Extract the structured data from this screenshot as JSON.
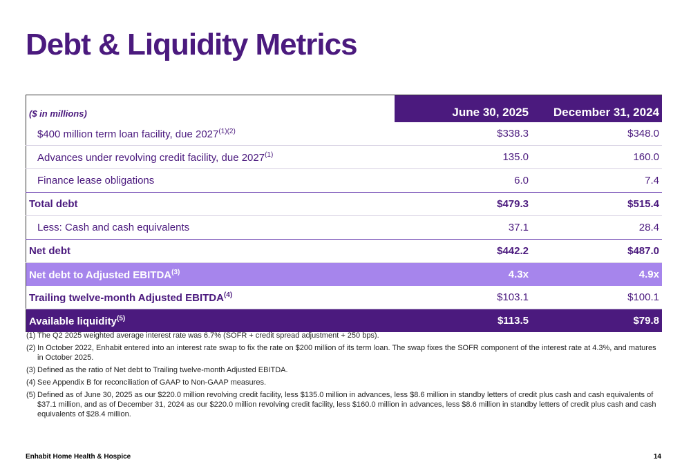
{
  "header": {
    "title": "Debt & Liquidity Metrics"
  },
  "table": {
    "units": "($ in millions)",
    "columns": [
      "June 30, 2025",
      "December 31, 2024"
    ],
    "rows": [
      {
        "label": "$400 million term loan facility, due 2027",
        "note": "(1)(2)",
        "values": [
          "$338.3",
          "$348.0"
        ],
        "style": "indent"
      },
      {
        "label": "Advances under revolving credit facility, due 2027",
        "note": "(1)",
        "values": [
          "135.0",
          "160.0"
        ],
        "style": "indent"
      },
      {
        "label": "Finance lease obligations",
        "values": [
          "6.0",
          "7.4"
        ],
        "style": "indent-end"
      },
      {
        "label": "Total debt",
        "values": [
          "$479.3",
          "$515.4"
        ],
        "style": "total"
      },
      {
        "label": "Less: Cash and cash equivalents",
        "values": [
          "37.1",
          "28.4"
        ],
        "style": "indent-end"
      },
      {
        "label": "Net debt",
        "values": [
          "$442.2",
          "$487.0"
        ],
        "style": "total"
      },
      {
        "label": "Net debt to Adjusted EBITDA",
        "note": "(3)",
        "values": [
          "4.3x",
          "4.9x"
        ],
        "style": "highlight"
      },
      {
        "label": "Trailing twelve-month Adjusted EBITDA",
        "note": "(4)",
        "values": [
          "$103.1",
          "$100.1"
        ],
        "style": "label-bold"
      },
      {
        "label": "Available liquidity",
        "note": "(5)",
        "values": [
          "$113.5",
          "$79.8"
        ],
        "style": "dark"
      }
    ]
  },
  "footnotes": [
    {
      "number": "(1)",
      "text": "The Q2 2025 weighted average interest rate was 6.7% (SOFR + credit spread adjustment + 250 bps)."
    },
    {
      "number": "(2)",
      "text": "In October 2022, Enhabit entered into an interest rate swap to fix the rate on $200 million of its term loan. The swap fixes the SOFR component of the interest rate at 4.3%, and matures in October 2025."
    },
    {
      "number": "(3)",
      "text": "Defined as the ratio of Net debt to Trailing twelve-month Adjusted EBITDA."
    },
    {
      "number": "(4)",
      "text": "See Appendix B for reconciliation of GAAP to Non-GAAP measures."
    },
    {
      "number": "(5)",
      "text": "Defined as of June 30, 2025 as our $220.0 million revolving credit facility, less $135.0 million in advances, less $8.6 million in standby letters of credit plus cash and cash equivalents of $37.1 million, and as of December 31, 2024 as our $220.0 million revolving credit facility, less $160.0 million in advances, less $8.6 million in standby letters of credit plus cash and cash equivalents of $28.4 million."
    }
  ],
  "footer": {
    "company": "Enhabit Home Health & Hospice",
    "page": "14"
  }
}
